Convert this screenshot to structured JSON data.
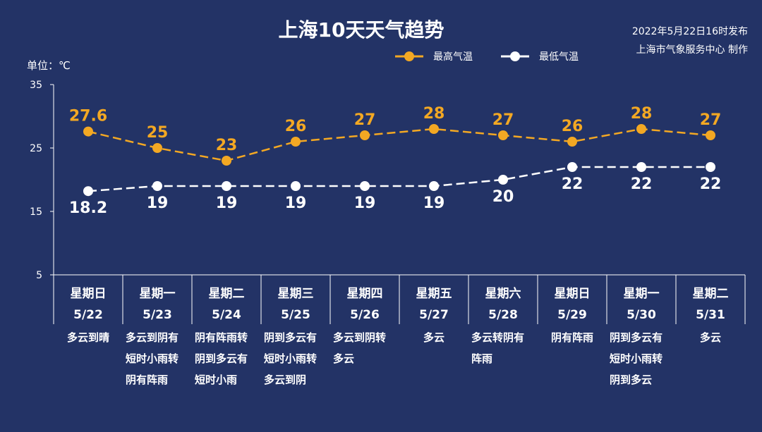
{
  "header": {
    "title": "上海10天天气趋势",
    "publish_time": "2022年5月22日16时发布",
    "producer": "上海市气象服务中心 制作"
  },
  "colors": {
    "background": "#233366",
    "high": "#f3a823",
    "low": "#ffffff",
    "axis": "#ffffff"
  },
  "chart_data": {
    "type": "line",
    "unit_label": "单位：℃",
    "ylim": [
      5,
      35
    ],
    "yticks": [
      5,
      15,
      25,
      35
    ],
    "legend": [
      "最高气温",
      "最低气温"
    ],
    "legend_position": "top-right",
    "categories": [
      {
        "day": "星期日",
        "date": "5/22",
        "desc": [
          "多云到晴"
        ]
      },
      {
        "day": "星期一",
        "date": "5/23",
        "desc": [
          "多云到阴有",
          "短时小雨转",
          "阴有阵雨"
        ]
      },
      {
        "day": "星期二",
        "date": "5/24",
        "desc": [
          "阴有阵雨转",
          "阴到多云有",
          "短时小雨"
        ]
      },
      {
        "day": "星期三",
        "date": "5/25",
        "desc": [
          "阴到多云有",
          "短时小雨转",
          "多云到阴"
        ]
      },
      {
        "day": "星期四",
        "date": "5/26",
        "desc": [
          "多云到阴转",
          "多云"
        ]
      },
      {
        "day": "星期五",
        "date": "5/27",
        "desc": [
          "多云"
        ]
      },
      {
        "day": "星期六",
        "date": "5/28",
        "desc": [
          "多云转阴有",
          "阵雨"
        ]
      },
      {
        "day": "星期日",
        "date": "5/29",
        "desc": [
          "阴有阵雨"
        ]
      },
      {
        "day": "星期一",
        "date": "5/30",
        "desc": [
          "阴到多云有",
          "短时小雨转",
          "阴到多云"
        ]
      },
      {
        "day": "星期二",
        "date": "5/31",
        "desc": [
          "多云"
        ]
      }
    ],
    "series": [
      {
        "name": "最高气温",
        "values": [
          27.6,
          25,
          23,
          26,
          27,
          28,
          27,
          26,
          28,
          27
        ],
        "labels": [
          "27.6",
          "25",
          "23",
          "26",
          "27",
          "28",
          "27",
          "26",
          "28",
          "27"
        ]
      },
      {
        "name": "最低气温",
        "values": [
          18.2,
          19,
          19,
          19,
          19,
          19,
          20,
          22,
          22,
          22
        ],
        "labels": [
          "18.2",
          "19",
          "19",
          "19",
          "19",
          "19",
          "20",
          "22",
          "22",
          "22"
        ]
      }
    ]
  }
}
